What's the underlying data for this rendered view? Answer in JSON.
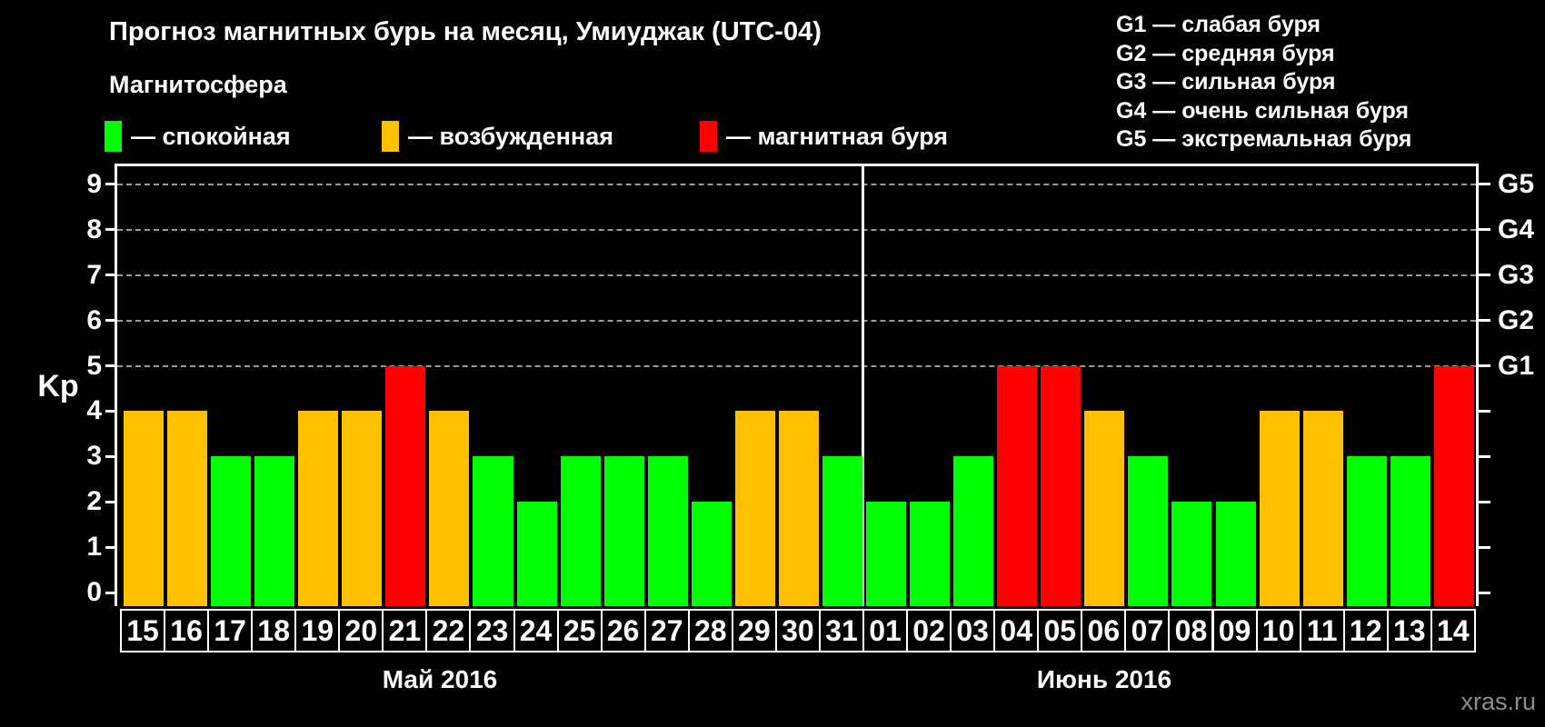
{
  "title": "Прогноз магнитных бурь на месяц, Умиуджак (UTC-04)",
  "watermark": "xras.ru",
  "magnetosphere": {
    "label": "Магнитосфера",
    "items": [
      {
        "state": "quiet",
        "label": "— спокойная",
        "color": "#00FF00"
      },
      {
        "state": "excited",
        "label": "— возбужденная",
        "color": "#FFC000"
      },
      {
        "state": "storm",
        "label": "— магнитная буря",
        "color": "#FF0000"
      }
    ]
  },
  "storm_scale_legend": [
    {
      "code": "G1",
      "label": "G1 — слабая буря"
    },
    {
      "code": "G2",
      "label": "G2 — средняя буря"
    },
    {
      "code": "G3",
      "label": "G3 — сильная буря"
    },
    {
      "code": "G4",
      "label": "G4 — очень сильная буря"
    },
    {
      "code": "G5",
      "label": "G5 — экстремальная буря"
    }
  ],
  "colors": {
    "background": "#000000",
    "quiet": "#00FF00",
    "excited": "#FFC000",
    "storm": "#FF0000",
    "axis": "#FFFFFF",
    "grid": "#9A9A9A",
    "watermark": "#8F8F8F"
  },
  "chart_data": {
    "type": "bar",
    "title": "Прогноз магнитных бурь на месяц, Умиуджак (UTC-04)",
    "ylabel": "Kp",
    "xlabel": "",
    "ylim": [
      0,
      9.4
    ],
    "yticks": [
      0,
      1,
      2,
      3,
      4,
      5,
      6,
      7,
      8,
      9
    ],
    "gridlines": [
      5,
      6,
      7,
      8,
      9
    ],
    "grid": "horizontal dashed at Kp 5..9",
    "legend_position": "top-left and top-right",
    "right_axis": [
      {
        "kp": 5,
        "label": "G1"
      },
      {
        "kp": 6,
        "label": "G2"
      },
      {
        "kp": 7,
        "label": "G3"
      },
      {
        "kp": 8,
        "label": "G4"
      },
      {
        "kp": 9,
        "label": "G5"
      }
    ],
    "months": [
      {
        "label": "Май 2016",
        "days": [
          {
            "day": "15",
            "kp": 4,
            "state": "excited"
          },
          {
            "day": "16",
            "kp": 4,
            "state": "excited"
          },
          {
            "day": "17",
            "kp": 3,
            "state": "quiet"
          },
          {
            "day": "18",
            "kp": 3,
            "state": "quiet"
          },
          {
            "day": "19",
            "kp": 4,
            "state": "excited"
          },
          {
            "day": "20",
            "kp": 4,
            "state": "excited"
          },
          {
            "day": "21",
            "kp": 5,
            "state": "storm"
          },
          {
            "day": "22",
            "kp": 4,
            "state": "excited"
          },
          {
            "day": "23",
            "kp": 3,
            "state": "quiet"
          },
          {
            "day": "24",
            "kp": 2,
            "state": "quiet"
          },
          {
            "day": "25",
            "kp": 3,
            "state": "quiet"
          },
          {
            "day": "26",
            "kp": 3,
            "state": "quiet"
          },
          {
            "day": "27",
            "kp": 3,
            "state": "quiet"
          },
          {
            "day": "28",
            "kp": 2,
            "state": "quiet"
          },
          {
            "day": "29",
            "kp": 4,
            "state": "excited"
          },
          {
            "day": "30",
            "kp": 4,
            "state": "excited"
          },
          {
            "day": "31",
            "kp": 3,
            "state": "quiet"
          }
        ]
      },
      {
        "label": "Июнь 2016",
        "days": [
          {
            "day": "01",
            "kp": 2,
            "state": "quiet"
          },
          {
            "day": "02",
            "kp": 2,
            "state": "quiet"
          },
          {
            "day": "03",
            "kp": 3,
            "state": "quiet"
          },
          {
            "day": "04",
            "kp": 5,
            "state": "storm"
          },
          {
            "day": "05",
            "kp": 5,
            "state": "storm"
          },
          {
            "day": "06",
            "kp": 4,
            "state": "excited"
          },
          {
            "day": "07",
            "kp": 3,
            "state": "quiet"
          },
          {
            "day": "08",
            "kp": 2,
            "state": "quiet"
          },
          {
            "day": "09",
            "kp": 2,
            "state": "quiet"
          },
          {
            "day": "10",
            "kp": 4,
            "state": "excited"
          },
          {
            "day": "11",
            "kp": 4,
            "state": "excited"
          },
          {
            "day": "12",
            "kp": 3,
            "state": "quiet"
          },
          {
            "day": "13",
            "kp": 3,
            "state": "quiet"
          },
          {
            "day": "14",
            "kp": 5,
            "state": "storm"
          }
        ]
      }
    ]
  }
}
